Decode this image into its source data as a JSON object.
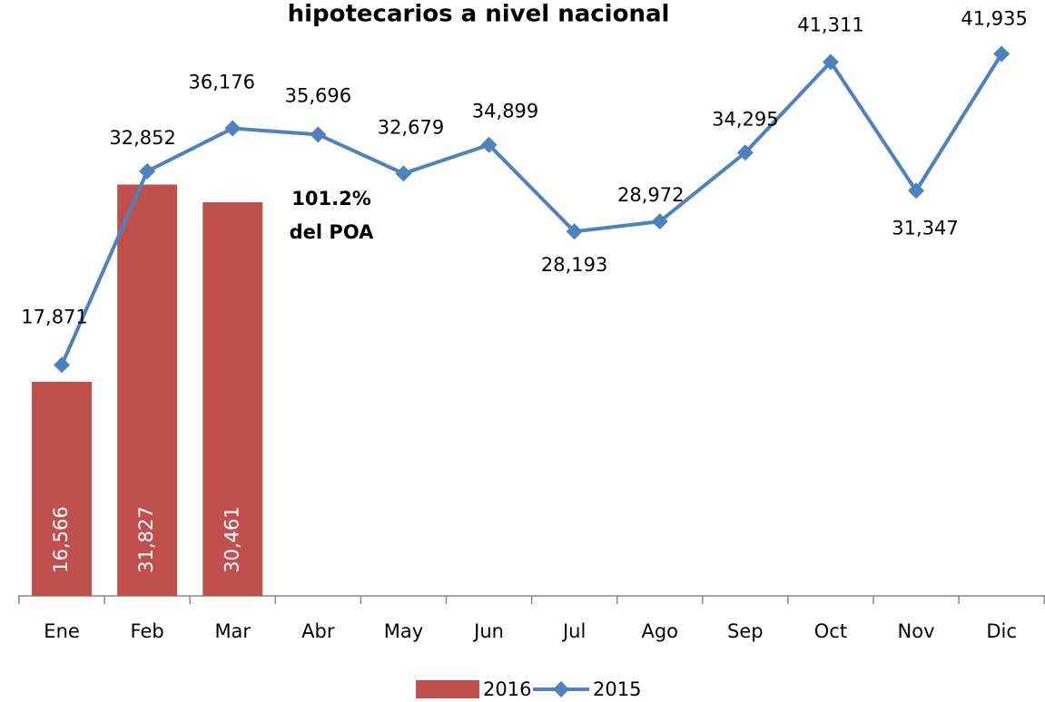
{
  "chart_data": {
    "type": "bar+line",
    "title": "hipotecarios a nivel nacional",
    "categories": [
      "Ene",
      "Feb",
      "Mar",
      "Abr",
      "May",
      "Jun",
      "Jul",
      "Ago",
      "Sep",
      "Oct",
      "Nov",
      "Dic"
    ],
    "series": [
      {
        "name": "2016",
        "type": "bar",
        "color": "#c0504d",
        "values": [
          16566,
          31827,
          30461,
          null,
          null,
          null,
          null,
          null,
          null,
          null,
          null,
          null
        ],
        "value_labels": [
          "16,566",
          "31,827",
          "30,461",
          null,
          null,
          null,
          null,
          null,
          null,
          null,
          null,
          null
        ]
      },
      {
        "name": "2015",
        "type": "line",
        "color": "#4f81bd",
        "values": [
          17871,
          32852,
          36176,
          35696,
          32679,
          34899,
          28193,
          28972,
          34295,
          41311,
          31347,
          41935
        ],
        "value_labels": [
          "17,871",
          "32,852",
          "36,176",
          "35,696",
          "32,679",
          "34,899",
          "28,193",
          "28,972",
          "34,295",
          "41,311",
          "31,347",
          "41,935"
        ]
      }
    ],
    "annotation": [
      "101.2%",
      "del POA"
    ],
    "legend": "bottom"
  }
}
